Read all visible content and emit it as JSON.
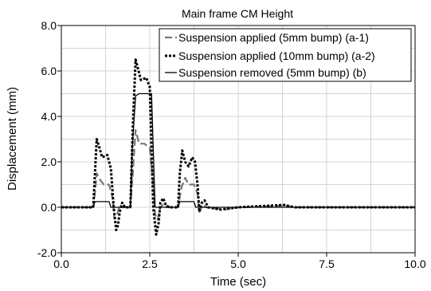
{
  "chart_data": {
    "type": "line",
    "title": "Main frame CM Height",
    "xlabel": "Time (sec)",
    "ylabel": "Displacement (mm)",
    "xlim": [
      0,
      10
    ],
    "ylim": [
      -2,
      8
    ],
    "x_ticks": [
      "0.0",
      "2.5",
      "5.0",
      "7.5",
      "10.0"
    ],
    "y_ticks": [
      "-2.0",
      "0.0",
      "2.0",
      "4.0",
      "6.0",
      "8.0"
    ],
    "grid": true,
    "legend_position": "top-right",
    "series": [
      {
        "name": "Suspension applied (5mm bump) (a-1)",
        "color": "#777777",
        "style": "dashed",
        "points": [
          [
            0,
            0
          ],
          [
            0.9,
            0
          ],
          [
            0.95,
            0.6
          ],
          [
            1.0,
            1.5
          ],
          [
            1.1,
            1.2
          ],
          [
            1.2,
            1.0
          ],
          [
            1.35,
            1.0
          ],
          [
            1.45,
            0.4
          ],
          [
            1.5,
            -0.5
          ],
          [
            1.58,
            -0.3
          ],
          [
            1.65,
            0.1
          ],
          [
            1.75,
            0
          ],
          [
            1.95,
            0
          ],
          [
            2.02,
            1.5
          ],
          [
            2.1,
            3.4
          ],
          [
            2.2,
            2.8
          ],
          [
            2.35,
            2.8
          ],
          [
            2.5,
            2.6
          ],
          [
            2.6,
            1.0
          ],
          [
            2.65,
            -0.3
          ],
          [
            2.72,
            -0.55
          ],
          [
            2.8,
            0.0
          ],
          [
            2.9,
            0.15
          ],
          [
            3.0,
            0
          ],
          [
            3.3,
            0
          ],
          [
            3.4,
            0.9
          ],
          [
            3.5,
            1.3
          ],
          [
            3.6,
            1.0
          ],
          [
            3.75,
            1.0
          ],
          [
            3.85,
            0.6
          ],
          [
            3.9,
            -0.2
          ],
          [
            4.0,
            0.1
          ],
          [
            4.1,
            0
          ],
          [
            4.6,
            -0.1
          ],
          [
            5.0,
            0
          ],
          [
            6.0,
            0.05
          ],
          [
            6.3,
            0.08
          ],
          [
            6.6,
            0
          ],
          [
            10,
            0
          ]
        ]
      },
      {
        "name": "Suspension applied (10mm bump) (a-2)",
        "color": "#000000",
        "style": "dotted",
        "points": [
          [
            0,
            0
          ],
          [
            0.9,
            0
          ],
          [
            0.95,
            1.5
          ],
          [
            1.0,
            3.0
          ],
          [
            1.08,
            2.6
          ],
          [
            1.15,
            2.2
          ],
          [
            1.3,
            2.3
          ],
          [
            1.4,
            1.7
          ],
          [
            1.48,
            0
          ],
          [
            1.55,
            -1.0
          ],
          [
            1.6,
            -0.8
          ],
          [
            1.65,
            -0.2
          ],
          [
            1.72,
            0.2
          ],
          [
            1.8,
            0
          ],
          [
            1.95,
            0
          ],
          [
            2.02,
            3.5
          ],
          [
            2.1,
            6.5
          ],
          [
            2.15,
            6.2
          ],
          [
            2.25,
            5.6
          ],
          [
            2.4,
            5.7
          ],
          [
            2.5,
            5.3
          ],
          [
            2.55,
            2.5
          ],
          [
            2.6,
            0
          ],
          [
            2.68,
            -1.2
          ],
          [
            2.75,
            -0.7
          ],
          [
            2.8,
            0.2
          ],
          [
            2.88,
            0.4
          ],
          [
            2.95,
            0.1
          ],
          [
            3.05,
            0
          ],
          [
            3.3,
            0
          ],
          [
            3.35,
            1.5
          ],
          [
            3.42,
            2.5
          ],
          [
            3.5,
            2.0
          ],
          [
            3.6,
            1.8
          ],
          [
            3.7,
            2.2
          ],
          [
            3.78,
            2.0
          ],
          [
            3.85,
            1.0
          ],
          [
            3.9,
            -0.2
          ],
          [
            3.97,
            0.2
          ],
          [
            4.05,
            0.3
          ],
          [
            4.15,
            0
          ],
          [
            4.5,
            -0.1
          ],
          [
            5.0,
            0
          ],
          [
            6.0,
            0.08
          ],
          [
            6.3,
            0.1
          ],
          [
            6.6,
            0
          ],
          [
            10,
            0
          ]
        ]
      },
      {
        "name": "Suspension removed (5mm bump) (b)",
        "color": "#000000",
        "style": "solid",
        "points": [
          [
            0,
            0
          ],
          [
            0.9,
            0
          ],
          [
            0.95,
            0.25
          ],
          [
            1.35,
            0.25
          ],
          [
            1.4,
            0
          ],
          [
            1.95,
            0
          ],
          [
            2.0,
            2.5
          ],
          [
            2.1,
            4.9
          ],
          [
            2.2,
            5.0
          ],
          [
            2.55,
            5.0
          ],
          [
            2.6,
            2.5
          ],
          [
            2.65,
            0
          ],
          [
            3.3,
            0
          ],
          [
            3.35,
            0.25
          ],
          [
            3.75,
            0.25
          ],
          [
            3.8,
            0
          ],
          [
            10,
            0
          ]
        ]
      }
    ]
  }
}
